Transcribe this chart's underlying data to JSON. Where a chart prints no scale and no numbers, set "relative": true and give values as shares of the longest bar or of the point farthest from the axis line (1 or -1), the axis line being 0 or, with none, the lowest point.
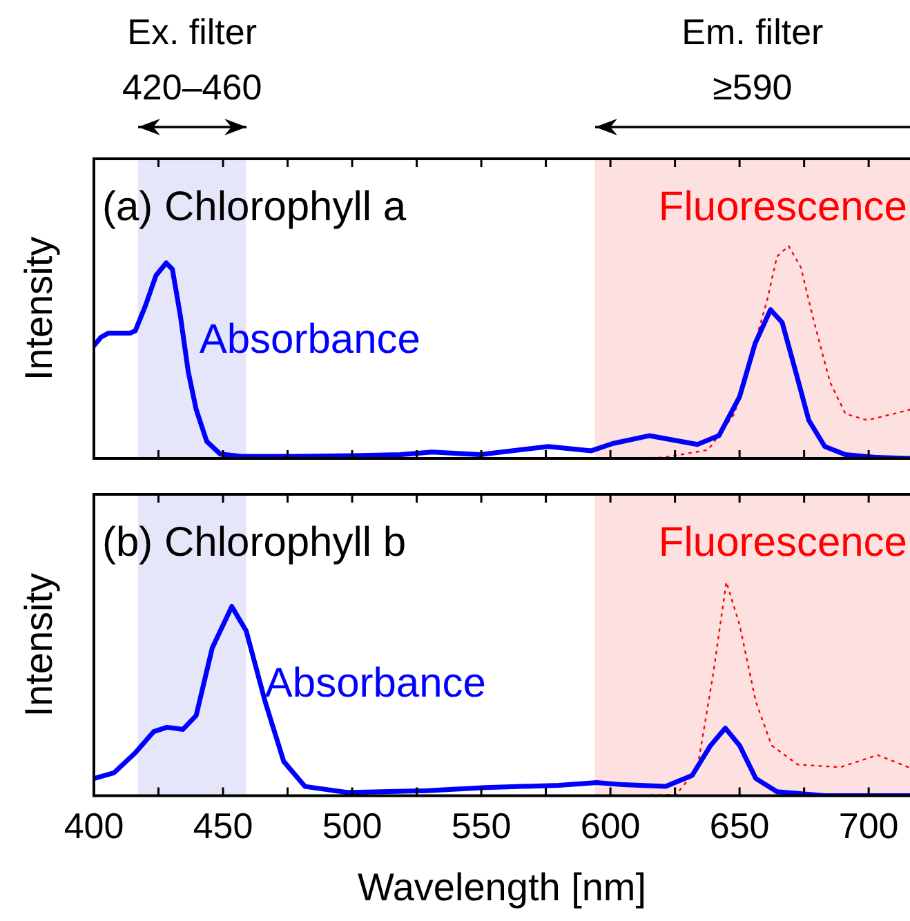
{
  "chart_data": [
    {
      "type": "line",
      "title": "(a) Chlorophyll a",
      "ylabel": "Intensity",
      "relative": true,
      "grid": false,
      "legend": false,
      "marker": "none",
      "tick_labels": false,
      "xlim": [
        400,
        716
      ],
      "xticks": [
        {
          "value": 400,
          "label": null
        },
        {
          "value": 425,
          "label": null
        },
        {
          "value": 450,
          "label": null
        },
        {
          "value": 475,
          "label": null
        },
        {
          "value": 500,
          "label": null
        },
        {
          "value": 525,
          "label": null
        },
        {
          "value": 550,
          "label": null
        },
        {
          "value": 575,
          "label": null
        },
        {
          "value": 600,
          "label": null
        },
        {
          "value": 625,
          "label": null
        },
        {
          "value": 650,
          "label": null
        },
        {
          "value": 675,
          "label": null
        },
        {
          "value": 700,
          "label": null
        }
      ],
      "bands": [
        {
          "axis": "x",
          "from": 417,
          "to": 459,
          "label": "Ex. filter\n420–460",
          "color": "#e6e6fa"
        },
        {
          "axis": "x",
          "from": 594,
          "to": 716,
          "label": "Em. filter\n≥590",
          "color": "#fde0e0"
        }
      ],
      "series": [
        {
          "name": "Absorbance",
          "color": "#0000ff",
          "line_style": "solid",
          "x": [
            400,
            402.7,
            405.7,
            414,
            416,
            420,
            424,
            428,
            430.4,
            433.5,
            436.5,
            439.6,
            443.7,
            449,
            457,
            477.6,
            500.6,
            518.7,
            531,
            549.5,
            576,
            592.6,
            600.8,
            615,
            633.7,
            642,
            650,
            656,
            662,
            666.5,
            671.7,
            676.8,
            683,
            691,
            702.7,
            716
          ],
          "values": [
            0.53,
            0.57,
            0.59,
            0.59,
            0.6,
            0.72,
            0.86,
            0.92,
            0.89,
            0.67,
            0.41,
            0.23,
            0.08,
            0.02,
            0.01,
            0.01,
            0.013,
            0.018,
            0.03,
            0.018,
            0.056,
            0.036,
            0.07,
            0.107,
            0.066,
            0.107,
            0.29,
            0.54,
            0.7,
            0.64,
            0.41,
            0.18,
            0.056,
            0.018,
            0.005,
            0
          ]
        },
        {
          "name": "Fluorescence",
          "color": "#ff0000",
          "line_style": "dotted",
          "x": [
            610,
            621,
            637.8,
            648,
            654,
            660.6,
            664.5,
            669,
            673.7,
            678.9,
            685,
            691,
            699.4,
            709.7,
            716
          ],
          "values": [
            0,
            0.005,
            0.04,
            0.21,
            null,
            0.74,
            0.95,
            1,
            0.9,
            0.64,
            0.36,
            0.21,
            0.18,
            0.21,
            0.23
          ]
        }
      ]
    },
    {
      "type": "line",
      "title": "(b) Chlorophyll b",
      "xlabel": "Wavelength [nm]",
      "ylabel": "Intensity",
      "relative": true,
      "grid": false,
      "legend": false,
      "marker": "none",
      "tick_labels": "x",
      "xlim": [
        400,
        716
      ],
      "xticks": [
        400,
        {
          "value": 425,
          "label": null
        },
        450,
        {
          "value": 475,
          "label": null
        },
        500,
        {
          "value": 525,
          "label": null
        },
        550,
        {
          "value": 575,
          "label": null
        },
        600,
        {
          "value": 625,
          "label": null
        },
        650,
        {
          "value": 675,
          "label": null
        },
        700
      ],
      "bands": [
        {
          "axis": "x",
          "from": 417,
          "to": 459,
          "color": "#e6e6fa"
        },
        {
          "axis": "x",
          "from": 594,
          "to": 716,
          "color": "#fde0e0"
        }
      ],
      "series": [
        {
          "name": "Absorbance",
          "color": "#0000ff",
          "line_style": "solid",
          "x": [
            400,
            407.8,
            416,
            423.2,
            428.3,
            434.5,
            439.6,
            445.8,
            453.4,
            459,
            466.3,
            473.5,
            481.7,
            498,
            529,
            551.5,
            580,
            594.7,
            605,
            621.4,
            631.6,
            638.8,
            644.5,
            650,
            656.3,
            664.5,
            683,
            716
          ],
          "values": [
            0.08,
            0.107,
            0.2,
            0.3,
            0.32,
            0.31,
            0.375,
            0.69,
            0.885,
            0.77,
            0.44,
            0.16,
            0.043,
            0.015,
            0.023,
            0.038,
            0.048,
            0.061,
            0.051,
            0.043,
            0.094,
            0.235,
            0.316,
            0.235,
            0.08,
            0.018,
            0,
            0
          ]
        },
        {
          "name": "Fluorescence",
          "color": "#ff0000",
          "line_style": "dotted",
          "x": [
            610,
            625.5,
            633.7,
            639.8,
            644.9,
            650,
            656.3,
            662.4,
            672.6,
            689,
            703.5,
            716
          ],
          "values": [
            0,
            0.005,
            0.13,
            0.57,
            1,
            0.8,
            0.44,
            0.235,
            0.145,
            0.133,
            0.19,
            0.13
          ]
        }
      ]
    }
  ]
}
